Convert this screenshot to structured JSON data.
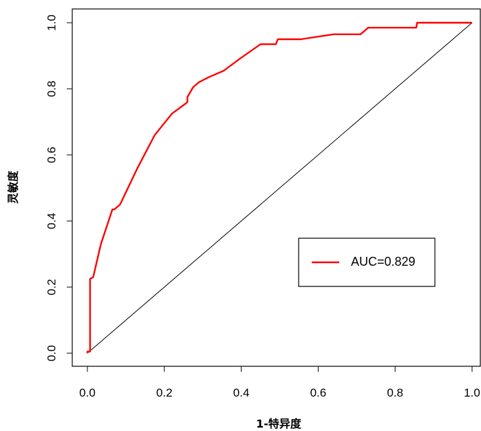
{
  "chart_data": {
    "type": "line",
    "title": "",
    "xlabel": "1-特异度",
    "ylabel": "灵敏度",
    "xlim": [
      0,
      1
    ],
    "ylim": [
      0,
      1
    ],
    "x_ticks": [
      "0.0",
      "0.2",
      "0.4",
      "0.6",
      "0.8",
      "1.0"
    ],
    "y_ticks": [
      "0.0",
      "0.2",
      "0.4",
      "0.6",
      "0.8",
      "1.0"
    ],
    "grid": false,
    "legend_position": "right",
    "series": [
      {
        "name": "AUC=0.829",
        "color": "#ff0000",
        "x": [
          0.0,
          0.0,
          0.007,
          0.007,
          0.015,
          0.035,
          0.065,
          0.07,
          0.085,
          0.13,
          0.175,
          0.22,
          0.255,
          0.26,
          0.26,
          0.275,
          0.29,
          0.315,
          0.355,
          0.395,
          0.45,
          0.49,
          0.495,
          0.555,
          0.64,
          0.71,
          0.73,
          0.855,
          0.857,
          1.0
        ],
        "y": [
          0.0,
          0.005,
          0.005,
          0.225,
          0.23,
          0.33,
          0.435,
          0.435,
          0.45,
          0.56,
          0.66,
          0.725,
          0.755,
          0.76,
          0.775,
          0.805,
          0.82,
          0.835,
          0.855,
          0.89,
          0.935,
          0.935,
          0.95,
          0.95,
          0.965,
          0.965,
          0.985,
          0.985,
          1.0,
          1.0
        ]
      }
    ],
    "reference_line": {
      "x": [
        0,
        1
      ],
      "y": [
        0,
        1
      ],
      "color": "#000000"
    }
  }
}
